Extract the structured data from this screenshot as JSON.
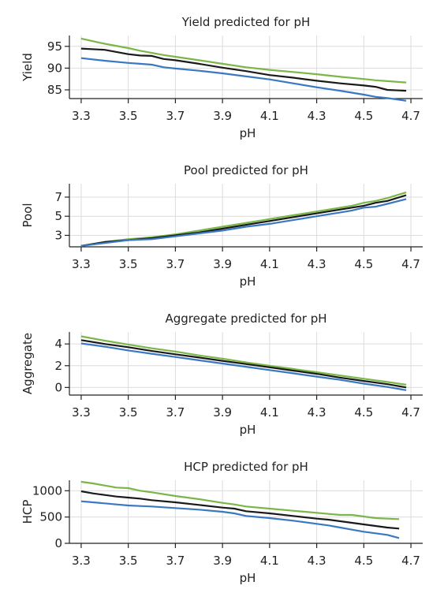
{
  "chart_data": [
    {
      "type": "line",
      "title": "Yield predicted for pH",
      "xlabel": "pH",
      "ylabel": "Yield",
      "xlim": [
        3.25,
        4.75
      ],
      "ylim": [
        83,
        97.5
      ],
      "xticks": [
        "3.3",
        "3.5",
        "3.7",
        "3.9",
        "4.1",
        "4.3",
        "4.5",
        "4.7"
      ],
      "yticks": [
        "85",
        "90",
        "95"
      ],
      "grid": true,
      "x": [
        3.3,
        3.4,
        3.5,
        3.55,
        3.6,
        3.65,
        3.7,
        3.8,
        3.9,
        4.0,
        4.1,
        4.2,
        4.3,
        4.4,
        4.5,
        4.55,
        4.6,
        4.68
      ],
      "series": [
        {
          "color": "#7ab648",
          "values": [
            96.8,
            95.6,
            94.6,
            94.0,
            93.5,
            93.0,
            92.6,
            91.8,
            91.0,
            90.2,
            89.6,
            89.1,
            88.6,
            88.0,
            87.5,
            87.2,
            87.0,
            86.7
          ]
        },
        {
          "color": "#1a1a1a",
          "values": [
            94.5,
            94.2,
            93.2,
            92.9,
            92.8,
            92.1,
            91.8,
            91.0,
            90.1,
            89.3,
            88.4,
            87.8,
            87.1,
            86.5,
            86.0,
            85.7,
            85.0,
            84.8
          ]
        },
        {
          "color": "#3a78c2",
          "values": [
            92.3,
            91.7,
            91.2,
            91.0,
            90.8,
            90.2,
            89.9,
            89.4,
            88.8,
            88.1,
            87.4,
            86.5,
            85.6,
            84.8,
            83.9,
            83.4,
            83.1,
            82.5
          ]
        }
      ]
    },
    {
      "type": "line",
      "title": "Pool predicted for pH",
      "xlabel": "pH",
      "ylabel": "Pool",
      "xlim": [
        3.25,
        4.75
      ],
      "ylim": [
        1.8,
        8.4
      ],
      "xticks": [
        "3.3",
        "3.5",
        "3.7",
        "3.9",
        "4.1",
        "4.3",
        "4.5",
        "4.7"
      ],
      "yticks": [
        "3",
        "5",
        "7"
      ],
      "grid": true,
      "x": [
        3.3,
        3.4,
        3.5,
        3.6,
        3.7,
        3.8,
        3.9,
        4.0,
        4.1,
        4.2,
        4.3,
        4.4,
        4.45,
        4.5,
        4.55,
        4.6,
        4.68
      ],
      "series": [
        {
          "color": "#7ab648",
          "values": [
            1.9,
            2.3,
            2.6,
            2.8,
            3.1,
            3.5,
            3.9,
            4.3,
            4.7,
            5.1,
            5.5,
            5.9,
            6.1,
            6.4,
            6.6,
            6.9,
            7.5
          ]
        },
        {
          "color": "#1a1a1a",
          "values": [
            1.9,
            2.3,
            2.5,
            2.7,
            3.0,
            3.3,
            3.7,
            4.1,
            4.5,
            4.9,
            5.3,
            5.7,
            5.9,
            6.1,
            6.4,
            6.6,
            7.2
          ]
        },
        {
          "color": "#3a78c2",
          "values": [
            1.9,
            2.2,
            2.5,
            2.6,
            2.9,
            3.2,
            3.5,
            3.9,
            4.2,
            4.6,
            5.0,
            5.4,
            5.6,
            5.9,
            6.0,
            6.3,
            6.8
          ]
        }
      ]
    },
    {
      "type": "line",
      "title": "Aggregate predicted for pH",
      "xlabel": "pH",
      "ylabel": "Aggregate",
      "xlim": [
        3.25,
        4.75
      ],
      "ylim": [
        -0.7,
        5.1
      ],
      "xticks": [
        "3.3",
        "3.5",
        "3.7",
        "3.9",
        "4.1",
        "4.3",
        "4.5",
        "4.7"
      ],
      "yticks": [
        "0",
        "2",
        "4"
      ],
      "grid": true,
      "x": [
        3.3,
        3.4,
        3.5,
        3.6,
        3.7,
        3.8,
        3.9,
        4.0,
        4.1,
        4.2,
        4.3,
        4.4,
        4.5,
        4.6,
        4.68
      ],
      "series": [
        {
          "color": "#7ab648",
          "values": [
            4.7,
            4.3,
            3.95,
            3.6,
            3.3,
            2.95,
            2.65,
            2.3,
            2.0,
            1.7,
            1.4,
            1.1,
            0.8,
            0.5,
            0.25
          ]
        },
        {
          "color": "#1a1a1a",
          "values": [
            4.35,
            4.0,
            3.7,
            3.35,
            3.05,
            2.75,
            2.45,
            2.15,
            1.85,
            1.55,
            1.25,
            0.9,
            0.6,
            0.3,
            0.0
          ]
        },
        {
          "color": "#3a78c2",
          "values": [
            4.05,
            3.75,
            3.4,
            3.1,
            2.8,
            2.5,
            2.2,
            1.9,
            1.6,
            1.3,
            1.0,
            0.7,
            0.35,
            0.05,
            -0.25
          ]
        }
      ]
    },
    {
      "type": "line",
      "title": "HCP predicted for pH",
      "xlabel": "pH",
      "ylabel": "HCP",
      "xlim": [
        3.25,
        4.75
      ],
      "ylim": [
        0,
        1200
      ],
      "xticks": [
        "3.3",
        "3.5",
        "3.7",
        "3.9",
        "4.1",
        "4.3",
        "4.5",
        "4.7"
      ],
      "yticks": [
        "0",
        "500",
        "1000"
      ],
      "grid": true,
      "x": [
        3.3,
        3.35,
        3.4,
        3.45,
        3.5,
        3.55,
        3.6,
        3.7,
        3.8,
        3.9,
        3.95,
        4.0,
        4.1,
        4.2,
        4.3,
        4.35,
        4.4,
        4.45,
        4.5,
        4.55,
        4.6,
        4.65
      ],
      "series": [
        {
          "color": "#7ab648",
          "values": [
            1170,
            1140,
            1100,
            1060,
            1050,
            1000,
            970,
            900,
            840,
            770,
            740,
            700,
            660,
            620,
            580,
            560,
            540,
            540,
            510,
            480,
            470,
            460
          ]
        },
        {
          "color": "#1a1a1a",
          "values": [
            990,
            950,
            920,
            890,
            870,
            850,
            820,
            780,
            730,
            680,
            660,
            610,
            570,
            520,
            470,
            450,
            420,
            390,
            360,
            330,
            300,
            280
          ]
        },
        {
          "color": "#3a78c2",
          "values": [
            800,
            780,
            760,
            740,
            720,
            710,
            700,
            670,
            640,
            600,
            570,
            520,
            480,
            430,
            370,
            340,
            300,
            260,
            220,
            190,
            160,
            100
          ]
        }
      ]
    }
  ]
}
